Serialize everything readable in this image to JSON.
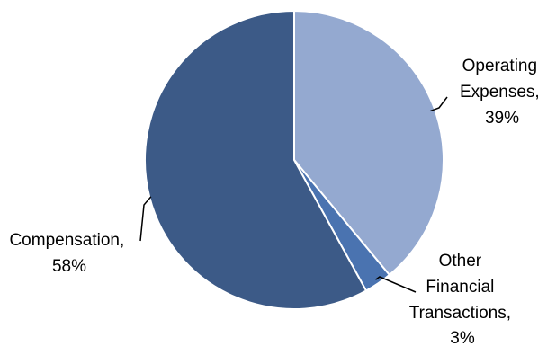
{
  "chart_data": {
    "type": "pie",
    "categories": [
      "Operating Expenses",
      "Other Financial Transactions",
      "Compensation"
    ],
    "values": [
      39,
      3,
      58
    ],
    "unit": "%",
    "colors": [
      "#94a9d0",
      "#4a73b0",
      "#3c5a87"
    ],
    "labels": [
      {
        "lines": [
          "Operating",
          "Expenses,",
          "39%"
        ]
      },
      {
        "lines": [
          "Other",
          "Financial",
          "Transactions,",
          "3%"
        ]
      },
      {
        "lines": [
          "Compensation,",
          "58%"
        ]
      }
    ],
    "title": "",
    "legend": "none"
  }
}
